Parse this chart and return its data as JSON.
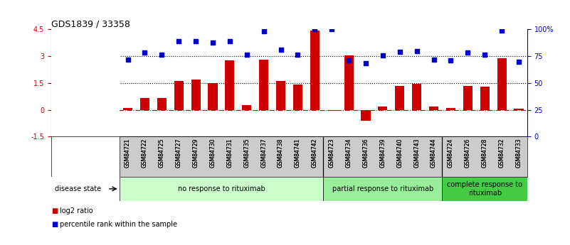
{
  "title": "GDS1839 / 33358",
  "samples": [
    "GSM84721",
    "GSM84722",
    "GSM84725",
    "GSM84727",
    "GSM84729",
    "GSM84730",
    "GSM84731",
    "GSM84735",
    "GSM84737",
    "GSM84738",
    "GSM84741",
    "GSM84742",
    "GSM84723",
    "GSM84734",
    "GSM84736",
    "GSM84739",
    "GSM84740",
    "GSM84743",
    "GSM84744",
    "GSM84724",
    "GSM84726",
    "GSM84728",
    "GSM84732",
    "GSM84733"
  ],
  "log2_ratio": [
    0.1,
    0.65,
    0.65,
    1.6,
    1.7,
    1.5,
    2.75,
    0.28,
    2.8,
    1.6,
    1.4,
    4.45,
    -0.05,
    3.05,
    -0.6,
    0.2,
    1.35,
    1.45,
    0.18,
    0.12,
    1.35,
    1.28,
    2.9,
    0.05
  ],
  "percentile": [
    2.8,
    3.2,
    3.1,
    3.85,
    3.85,
    3.75,
    3.85,
    3.1,
    4.4,
    3.35,
    3.1,
    4.5,
    4.5,
    2.75,
    2.6,
    3.05,
    3.25,
    3.3,
    2.8,
    2.75,
    3.2,
    3.1,
    4.45,
    2.7
  ],
  "bar_color": "#cc0000",
  "dot_color": "#0000cc",
  "ylim_left": [
    -1.5,
    4.5
  ],
  "ylim_right": [
    0,
    100
  ],
  "yticks_left": [
    -1.5,
    0.0,
    1.5,
    3.0,
    4.5
  ],
  "ytick_labels_left": [
    "-1.5",
    "0",
    "1.5",
    "3",
    "4.5"
  ],
  "yticks_right": [
    0,
    25,
    50,
    75,
    100
  ],
  "ytick_labels_right": [
    "0",
    "25",
    "50",
    "75",
    "100%"
  ],
  "hline0_color": "#cc0000",
  "hline_color": "#000000",
  "groups": [
    {
      "label": "no response to rituximab",
      "start": 0,
      "end": 11,
      "color": "#ccffcc"
    },
    {
      "label": "partial response to rituximab",
      "start": 12,
      "end": 18,
      "color": "#99ee99"
    },
    {
      "label": "complete response to\nrituximab",
      "start": 19,
      "end": 23,
      "color": "#44cc44"
    }
  ],
  "disease_state_label": "disease state",
  "legend_items": [
    {
      "color": "#cc0000",
      "label": "log2 ratio"
    },
    {
      "color": "#0000cc",
      "label": "percentile rank within the sample"
    }
  ],
  "xlabel_color_left": "#cc0000",
  "xlabel_color_right": "#0000cc",
  "background_color": "#ffffff",
  "plot_bg_color": "#ffffff",
  "label_area_color": "#cccccc"
}
